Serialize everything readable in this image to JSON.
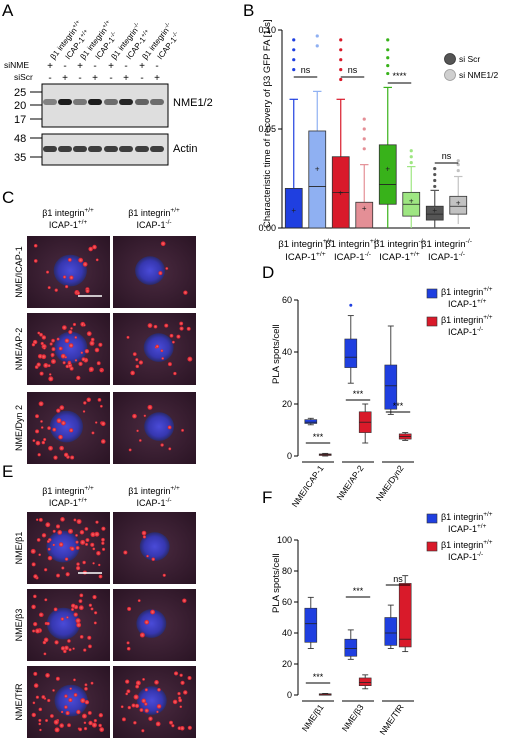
{
  "panel_letters": {
    "a": "A",
    "b": "B",
    "c": "C",
    "d": "D",
    "e": "E",
    "f": "F"
  },
  "panel_a": {
    "lane_labels": [
      "β1 integrin+/+ ICAP-1+/+",
      "ICAP-1+/+",
      "β1 integrin+/+ ICAP-1-/-",
      "ICAP-1-/-",
      "β1 integrin-/- ICAP-1+/+",
      "ICAP-1+/+",
      "β1 integrin-/- ICAP-1-/-",
      "ICAP-1-/-"
    ],
    "lane_short": [
      "β1 integrin",
      "ICAP-1",
      "β1 integrin",
      "ICAP-1",
      "β1 integrin",
      "ICAP-1",
      "β1 integrin",
      "ICAP-1"
    ],
    "lane_sup": [
      "+/+",
      "+/+",
      "+/+",
      "-/-",
      "-/-",
      "+/+",
      "-/-",
      "-/-"
    ],
    "row_sinme": "siNME",
    "row_siscr": "siScr",
    "sinme_signs": [
      "+",
      "-",
      "+",
      "-",
      "+",
      "-",
      "+",
      "-"
    ],
    "siscr_signs": [
      "-",
      "+",
      "-",
      "+",
      "-",
      "+",
      "-",
      "+"
    ],
    "mw_top": [
      "25",
      "20",
      "17"
    ],
    "mw_bottom": [
      "48",
      "35"
    ],
    "band_label_top": "NME1/2",
    "band_label_bottom": "Actin"
  },
  "panel_b": {
    "chart_data": {
      "type": "box",
      "ylabel": "Characteristic time of recovery of β3 GFP FA [1/s]",
      "ylim": [
        0,
        0.1
      ],
      "yticks": [
        "0.00",
        "0.05",
        "0.10"
      ],
      "legend": [
        "si Scr",
        "si NME1/2"
      ],
      "groups": [
        {
          "label_line1": "β1 integrin+/+",
          "label_line2": "ICAP-1+/+",
          "l1": "β1 integrin",
          "s1": "+/+",
          "l2": "ICAP-1",
          "s2": "+/+",
          "sig": "ns"
        },
        {
          "label_line1": "β1 integrin+/+",
          "label_line2": "ICAP-1-/-",
          "l1": "β1 integrin",
          "s1": "+/+",
          "l2": "ICAP-1",
          "s2": "-/-",
          "sig": "ns"
        },
        {
          "label_line1": "β1 integrin-/-",
          "label_line2": "ICAP-1+/+",
          "l1": "β1 integrin",
          "s1": "-/-",
          "l2": "ICAP-1",
          "s2": "+/+",
          "sig": "****"
        },
        {
          "label_line1": "β1 integrin-/-",
          "label_line2": "ICAP-1-/-",
          "l1": "β1 integrin",
          "s1": "-/-",
          "l2": "ICAP-1",
          "s2": "-/-",
          "sig": "ns"
        }
      ],
      "boxes": [
        {
          "color": "#1f3fe0",
          "q1": 0.0,
          "median": 0.0,
          "q3": 0.02,
          "min": 0.0,
          "max": 0.065,
          "mean": 0.009,
          "outliers": [
            0.08,
            0.085,
            0.09,
            0.095
          ]
        },
        {
          "color": "#8fb0f2",
          "q1": 0.0,
          "median": 0.021,
          "q3": 0.049,
          "min": 0.0,
          "max": 0.069,
          "mean": 0.03,
          "outliers": [
            0.092,
            0.097
          ]
        },
        {
          "color": "#d91a2a",
          "q1": 0.0,
          "median": 0.018,
          "q3": 0.036,
          "min": 0.0,
          "max": 0.065,
          "mean": 0.018,
          "outliers": [
            0.075,
            0.08,
            0.085,
            0.09,
            0.095
          ]
        },
        {
          "color": "#e48f96",
          "q1": 0.0,
          "median": 0.0,
          "q3": 0.013,
          "min": 0.0,
          "max": 0.032,
          "mean": 0.01,
          "outliers": [
            0.04,
            0.045,
            0.05,
            0.055
          ]
        },
        {
          "color": "#38b21a",
          "q1": 0.012,
          "median": 0.022,
          "q3": 0.042,
          "min": 0.0,
          "max": 0.071,
          "mean": 0.03,
          "outliers": [
            0.078,
            0.082,
            0.086,
            0.09,
            0.095
          ]
        },
        {
          "color": "#9ee682",
          "q1": 0.006,
          "median": 0.012,
          "q3": 0.018,
          "min": 0.0,
          "max": 0.031,
          "mean": 0.014,
          "outliers": [
            0.033,
            0.036,
            0.039
          ]
        },
        {
          "color": "#555555",
          "q1": 0.004,
          "median": 0.007,
          "q3": 0.011,
          "min": 0.0,
          "max": 0.019,
          "mean": 0.009,
          "outliers": [
            0.021,
            0.024,
            0.027,
            0.03
          ]
        },
        {
          "color": "#c2c2c2",
          "q1": 0.007,
          "median": 0.011,
          "q3": 0.016,
          "min": 0.002,
          "max": 0.026,
          "mean": 0.013,
          "outliers": [
            0.029,
            0.032,
            0.034
          ]
        }
      ]
    }
  },
  "panel_c": {
    "col_labels": [
      {
        "l1": "β1 integrin",
        "s1": "+/+",
        "l2": "ICAP-1",
        "s2": "+/+"
      },
      {
        "l1": "β1 integrin",
        "s1": "+/+",
        "l2": "ICAP-1",
        "s2": "-/-"
      }
    ],
    "row_labels": [
      "NME/ICAP-1",
      "NME/AP-2",
      "NME/Dyn 2"
    ]
  },
  "panel_d": {
    "chart_data": {
      "type": "box",
      "ylabel": "PLA spots/cell",
      "ylim": [
        0,
        60
      ],
      "yticks": [
        "0",
        "20",
        "40",
        "60"
      ],
      "categories": [
        "NME/ICAP-1",
        "NME/AP-2",
        "NME/Dyn2"
      ],
      "significance": [
        "***",
        "***",
        "***"
      ],
      "legend": [
        {
          "l1": "β1 integrin",
          "s1": "+/+",
          "l2": "ICAP-1",
          "s2": "+/+",
          "color": "#1f3fe0"
        },
        {
          "l1": "β1 integrin",
          "s1": "+/+",
          "l2": "ICAP-1",
          "s2": "-/-",
          "color": "#d91a2a"
        }
      ],
      "boxes": [
        {
          "color": "#1f3fe0",
          "q1": 12.5,
          "median": 13.0,
          "q3": 14.0,
          "min": 12.0,
          "max": 14.5
        },
        {
          "color": "#d91a2a",
          "q1": 0.2,
          "median": 0.5,
          "q3": 0.8,
          "min": 0.0,
          "max": 1.0
        },
        {
          "color": "#1f3fe0",
          "q1": 34,
          "median": 38,
          "q3": 45,
          "min": 28,
          "max": 54,
          "outliers": [
            58
          ]
        },
        {
          "color": "#d91a2a",
          "q1": 9,
          "median": 13,
          "q3": 17,
          "min": 5,
          "max": 20
        },
        {
          "color": "#1f3fe0",
          "q1": 18,
          "median": 27,
          "q3": 35,
          "min": 16,
          "max": 50
        },
        {
          "color": "#d91a2a",
          "q1": 6.5,
          "median": 7.5,
          "q3": 8.5,
          "min": 6,
          "max": 9
        }
      ]
    }
  },
  "panel_e": {
    "col_labels": [
      {
        "l1": "β1 integrin",
        "s1": "+/+",
        "l2": "ICAP-1",
        "s2": "+/+"
      },
      {
        "l1": "β1 integrin",
        "s1": "+/+",
        "l2": "ICAP-1",
        "s2": "-/-"
      }
    ],
    "row_labels": [
      "NME/β1",
      "NME/β3",
      "NME/TfR"
    ]
  },
  "panel_f": {
    "chart_data": {
      "type": "box",
      "ylabel": "PLA spots/cell",
      "ylim": [
        0,
        100
      ],
      "yticks": [
        "0",
        "20",
        "40",
        "60",
        "80",
        "100"
      ],
      "categories": [
        "NME/β1",
        "NME/β3",
        "NME/TfR"
      ],
      "significance": [
        "***",
        "***",
        "ns"
      ],
      "legend": [
        {
          "l1": "β1 integrin",
          "s1": "+/+",
          "l2": "ICAP-1",
          "s2": "+/+",
          "color": "#1f3fe0"
        },
        {
          "l1": "β1 integrin",
          "s1": "+/+",
          "l2": "ICAP-1",
          "s2": "-/-",
          "color": "#d91a2a"
        }
      ],
      "boxes": [
        {
          "color": "#1f3fe0",
          "q1": 34,
          "median": 46,
          "q3": 56,
          "min": 30,
          "max": 63
        },
        {
          "color": "#d91a2a",
          "q1": 0.2,
          "median": 0.5,
          "q3": 0.8,
          "min": 0.0,
          "max": 1.0
        },
        {
          "color": "#1f3fe0",
          "q1": 25,
          "median": 30,
          "q3": 36,
          "min": 23,
          "max": 42
        },
        {
          "color": "#d91a2a",
          "q1": 6,
          "median": 8,
          "q3": 11,
          "min": 4,
          "max": 13
        },
        {
          "color": "#1f3fe0",
          "q1": 32,
          "median": 40,
          "q3": 50,
          "min": 30,
          "max": 58
        },
        {
          "color": "#d91a2a",
          "q1": 31,
          "median": 36,
          "q3": 72,
          "min": 28,
          "max": 77
        }
      ]
    }
  }
}
